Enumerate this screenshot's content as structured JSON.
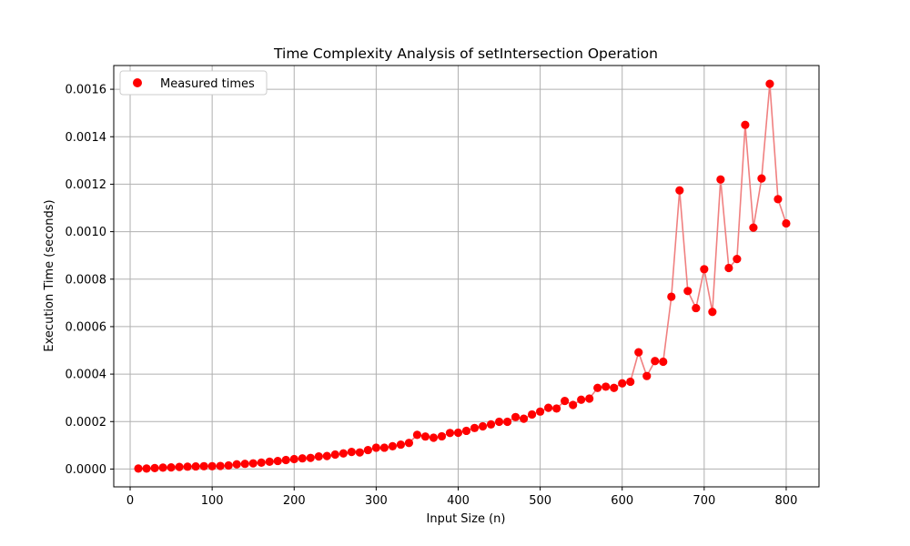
{
  "chart_data": {
    "type": "scatter",
    "title": "Time Complexity Analysis of setIntersection Operation",
    "xlabel": "Input Size (n)",
    "ylabel": "Execution Time (seconds)",
    "xlim": [
      -20,
      840
    ],
    "ylim": [
      -7.5e-05,
      0.0017
    ],
    "xticks": [
      0,
      100,
      200,
      300,
      400,
      500,
      600,
      700,
      800
    ],
    "yticks": [
      0,
      0.0002,
      0.0004,
      0.0006,
      0.0008,
      0.001,
      0.0012,
      0.0014,
      0.0016
    ],
    "yticklabels": [
      "0.0000",
      "0.0002",
      "0.0004",
      "0.0006",
      "0.0008",
      "0.0010",
      "0.0012",
      "0.0014",
      "0.0016"
    ],
    "grid": true,
    "legend": {
      "location": "upper-left",
      "entries": [
        "Measured times"
      ]
    },
    "colors": {
      "points": "#ff0000",
      "line": "#f08080"
    },
    "series": [
      {
        "name": "Measured times",
        "x": [
          10,
          20,
          30,
          40,
          50,
          60,
          70,
          80,
          90,
          100,
          110,
          120,
          130,
          140,
          150,
          160,
          170,
          180,
          190,
          200,
          210,
          220,
          230,
          240,
          250,
          260,
          270,
          280,
          290,
          300,
          310,
          320,
          330,
          340,
          350,
          360,
          370,
          380,
          390,
          400,
          410,
          420,
          430,
          440,
          450,
          460,
          470,
          480,
          490,
          500,
          510,
          520,
          530,
          540,
          550,
          560,
          570,
          580,
          590,
          600,
          610,
          620,
          630,
          640,
          650,
          660,
          670,
          680,
          690,
          700,
          710,
          720,
          730,
          740,
          750,
          760,
          770,
          780,
          790,
          800
        ],
        "y": [
          2e-06,
          2e-06,
          4e-06,
          6e-06,
          7e-06,
          9e-06,
          1e-05,
          1.1e-05,
          1.2e-05,
          1.2e-05,
          1.3e-05,
          1.5e-05,
          2e-05,
          2.2e-05,
          2.4e-05,
          2.7e-05,
          3.1e-05,
          3.4e-05,
          3.8e-05,
          4.2e-05,
          4.5e-05,
          4.7e-05,
          5.3e-05,
          5.5e-05,
          6.1e-05,
          6.6e-05,
          7.2e-05,
          7e-05,
          8e-05,
          9e-05,
          9e-05,
          9.6e-05,
          0.000103,
          0.00011,
          0.000144,
          0.000137,
          0.000132,
          0.000138,
          0.000152,
          0.000153,
          0.000161,
          0.000173,
          0.00018,
          0.000188,
          0.000199,
          0.000199,
          0.000219,
          0.000212,
          0.00023,
          0.000242,
          0.000258,
          0.000255,
          0.000287,
          0.00027,
          0.000292,
          0.000297,
          0.000342,
          0.000347,
          0.000342,
          0.000361,
          0.000368,
          0.000492,
          0.000392,
          0.000455,
          0.000452,
          0.000726,
          0.001174,
          0.00075,
          0.000678,
          0.000842,
          0.000662,
          0.00122,
          0.000847,
          0.000885,
          0.00145,
          0.001017,
          0.001224,
          0.001623,
          0.001137,
          0.001035
        ]
      }
    ]
  }
}
